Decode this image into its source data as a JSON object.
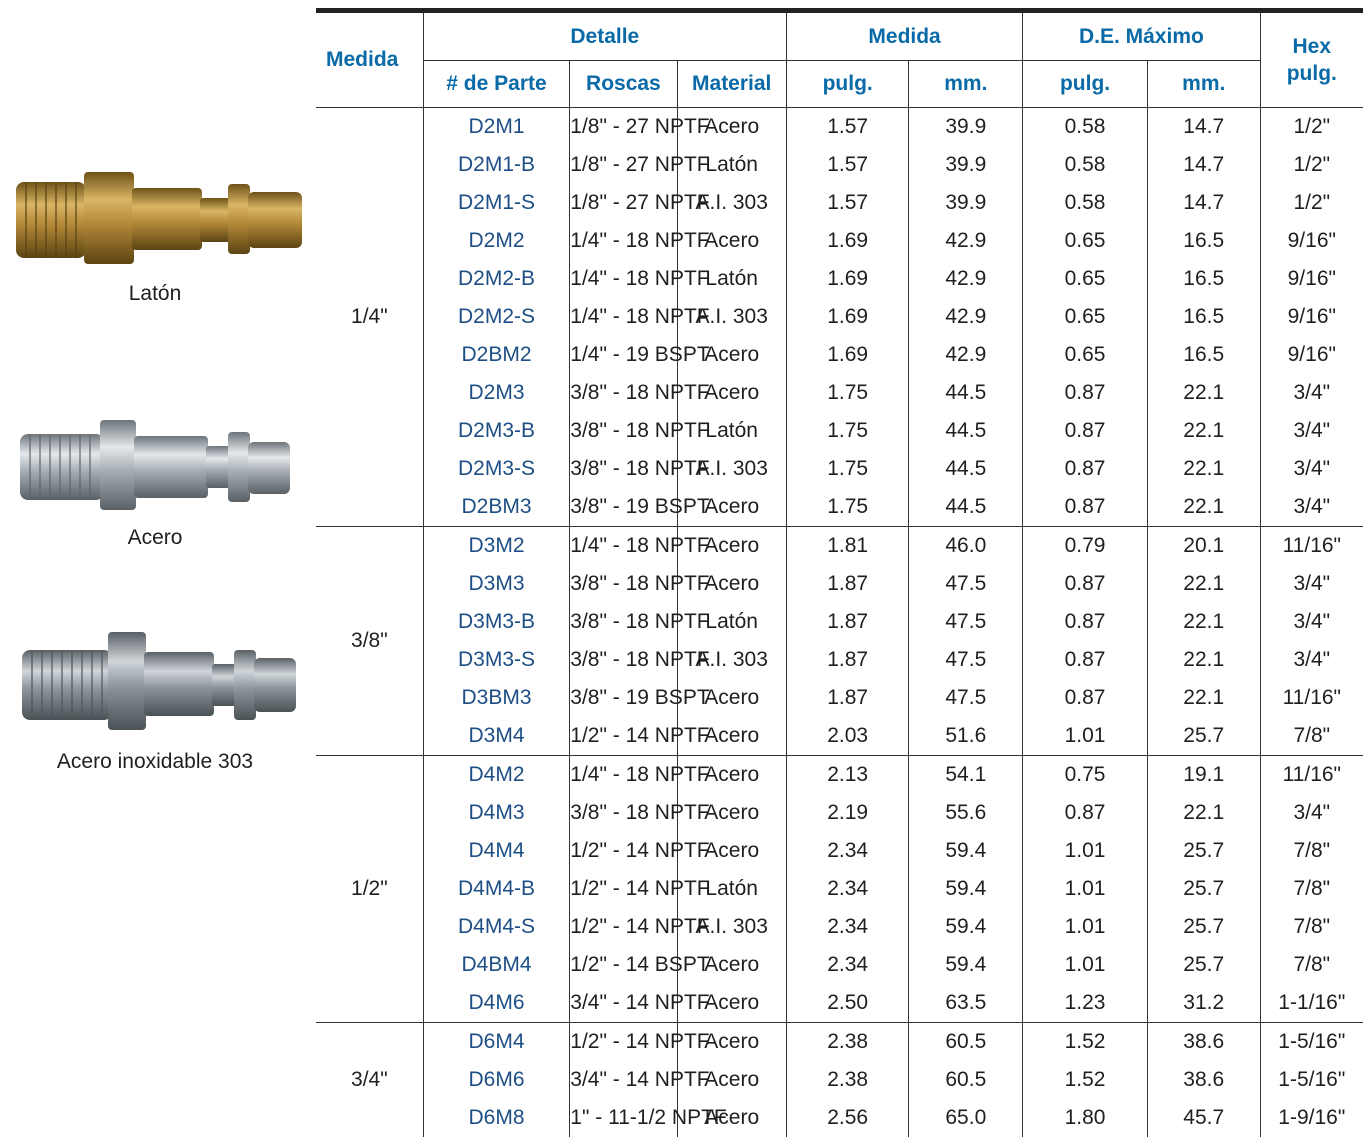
{
  "products": [
    {
      "label": "Latón",
      "icon": "brass-plug-icon",
      "color": "#b58a3a"
    },
    {
      "label": "Acero",
      "icon": "steel-plug-icon",
      "color": "#a9b0b5"
    },
    {
      "label": "Acero inoxidable 303",
      "icon": "stainless-plug-icon",
      "color": "#8e969c"
    }
  ],
  "headers": {
    "medida": "Medida",
    "detalle": "Detalle",
    "medida2": "Medida",
    "de_maximo": "D.E. Máximo",
    "hex": "Hex",
    "hex_unit": "pulg.",
    "part": "# de Parte",
    "roscas": "Roscas",
    "material": "Material",
    "pulg1": "pulg.",
    "mm1": "mm.",
    "pulg2": "pulg.",
    "mm2": "mm."
  },
  "groups": [
    {
      "size": "1/4\"",
      "rows": [
        [
          "D2M1",
          "1/8\" - 27 NPTF",
          "Acero",
          "1.57",
          "39.9",
          "0.58",
          "14.7",
          "1/2\""
        ],
        [
          "D2M1-B",
          "1/8\" - 27 NPTF",
          "Latón",
          "1.57",
          "39.9",
          "0.58",
          "14.7",
          "1/2\""
        ],
        [
          "D2M1-S",
          "1/8\" - 27 NPTF",
          "A.I. 303",
          "1.57",
          "39.9",
          "0.58",
          "14.7",
          "1/2\""
        ],
        [
          "D2M2",
          "1/4\" - 18 NPTF",
          "Acero",
          "1.69",
          "42.9",
          "0.65",
          "16.5",
          "9/16\""
        ],
        [
          "D2M2-B",
          "1/4\" - 18 NPTF",
          "Latón",
          "1.69",
          "42.9",
          "0.65",
          "16.5",
          "9/16\""
        ],
        [
          "D2M2-S",
          "1/4\" - 18 NPTF",
          "A.I. 303",
          "1.69",
          "42.9",
          "0.65",
          "16.5",
          "9/16\""
        ],
        [
          "D2BM2",
          "1/4\" - 19 BSPT",
          "Acero",
          "1.69",
          "42.9",
          "0.65",
          "16.5",
          "9/16\""
        ],
        [
          "D2M3",
          "3/8\" - 18 NPTF",
          "Acero",
          "1.75",
          "44.5",
          "0.87",
          "22.1",
          "3/4\""
        ],
        [
          "D2M3-B",
          "3/8\" - 18 NPTF",
          "Latón",
          "1.75",
          "44.5",
          "0.87",
          "22.1",
          "3/4\""
        ],
        [
          "D2M3-S",
          "3/8\" - 18 NPTF",
          "A.I. 303",
          "1.75",
          "44.5",
          "0.87",
          "22.1",
          "3/4\""
        ],
        [
          "D2BM3",
          "3/8\" - 19 BSPT",
          "Acero",
          "1.75",
          "44.5",
          "0.87",
          "22.1",
          "3/4\""
        ]
      ]
    },
    {
      "size": "3/8\"",
      "rows": [
        [
          "D3M2",
          "1/4\" - 18 NPTF",
          "Acero",
          "1.81",
          "46.0",
          "0.79",
          "20.1",
          "11/16\""
        ],
        [
          "D3M3",
          "3/8\" - 18 NPTF",
          "Acero",
          "1.87",
          "47.5",
          "0.87",
          "22.1",
          "3/4\""
        ],
        [
          "D3M3-B",
          "3/8\" - 18 NPTF",
          "Latón",
          "1.87",
          "47.5",
          "0.87",
          "22.1",
          "3/4\""
        ],
        [
          "D3M3-S",
          "3/8\" - 18 NPTF",
          "A.I. 303",
          "1.87",
          "47.5",
          "0.87",
          "22.1",
          "3/4\""
        ],
        [
          "D3BM3",
          "3/8\" - 19 BSPT",
          "Acero",
          "1.87",
          "47.5",
          "0.87",
          "22.1",
          "11/16\""
        ],
        [
          "D3M4",
          "1/2\" - 14 NPTF",
          "Acero",
          "2.03",
          "51.6",
          "1.01",
          "25.7",
          "7/8\""
        ]
      ]
    },
    {
      "size": "1/2\"",
      "rows": [
        [
          "D4M2",
          "1/4\" - 18 NPTF",
          "Acero",
          "2.13",
          "54.1",
          "0.75",
          "19.1",
          "11/16\""
        ],
        [
          "D4M3",
          "3/8\" - 18 NPTF",
          "Acero",
          "2.19",
          "55.6",
          "0.87",
          "22.1",
          "3/4\""
        ],
        [
          "D4M4",
          "1/2\" - 14 NPTF",
          "Acero",
          "2.34",
          "59.4",
          "1.01",
          "25.7",
          "7/8\""
        ],
        [
          "D4M4-B",
          "1/2\" - 14 NPTF",
          "Latón",
          "2.34",
          "59.4",
          "1.01",
          "25.7",
          "7/8\""
        ],
        [
          "D4M4-S",
          "1/2\" - 14 NPTF",
          "A.I. 303",
          "2.34",
          "59.4",
          "1.01",
          "25.7",
          "7/8\""
        ],
        [
          "D4BM4",
          "1/2\" - 14 BSPT",
          "Acero",
          "2.34",
          "59.4",
          "1.01",
          "25.7",
          "7/8\""
        ],
        [
          "D4M6",
          "3/4\" - 14 NPTF",
          "Acero",
          "2.50",
          "63.5",
          "1.23",
          "31.2",
          "1-1/16\""
        ]
      ]
    },
    {
      "size": "3/4\"",
      "rows": [
        [
          "D6M4",
          "1/2\" - 14 NPTF",
          "Acero",
          "2.38",
          "60.5",
          "1.52",
          "38.6",
          "1-5/16\""
        ],
        [
          "D6M6",
          "3/4\" - 14 NPTF",
          "Acero",
          "2.38",
          "60.5",
          "1.52",
          "38.6",
          "1-5/16\""
        ],
        [
          "D6M8",
          "1\" - 11-1/2 NPTF",
          "Acero",
          "2.56",
          "65.0",
          "1.80",
          "45.7",
          "1-9/16\""
        ]
      ]
    }
  ]
}
